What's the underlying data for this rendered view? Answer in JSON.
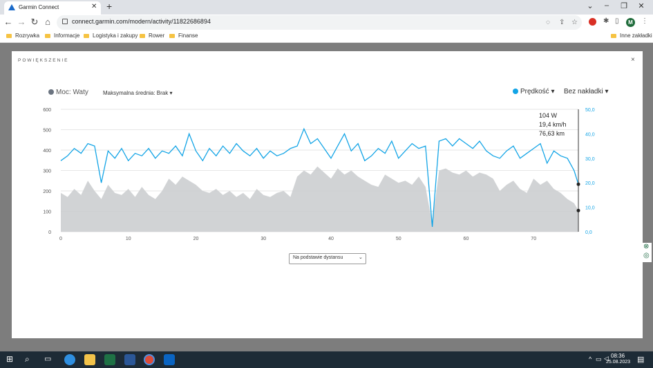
{
  "browser": {
    "tab_title": "Garmin Connect",
    "url": "connect.garmin.com/modern/activity/11822686894",
    "avatar_letter": "M",
    "bookmarks": [
      "Rozrywka",
      "Informacje",
      "Logistyka i zakupy",
      "Rower",
      "Finanse"
    ],
    "other_bookmarks": "Inne zakładki",
    "accent_color": "#1b6ac9"
  },
  "modal": {
    "title": "POWIĘKSZENIE",
    "close_label": "×",
    "legend_power": "Moc: Waty",
    "legend_max_avg": "Maksymalna średnia: Brak ▾",
    "legend_speed": "Prędkość ▾",
    "legend_overlay": "Bez nakładki ▾",
    "select_value": "Na podstawie dystansu",
    "tooltip": {
      "power": "104 W",
      "speed": "19,4 km/h",
      "distance": "76,63 km"
    }
  },
  "taskbar": {
    "time": "08:36",
    "date": "25.08.2023"
  },
  "chart_data": {
    "type": "line",
    "x_ticks": [
      "0",
      "10",
      "20",
      "30",
      "40",
      "50",
      "60",
      "70"
    ],
    "xlim": [
      0,
      76.63
    ],
    "y_left_ticks": [
      "0",
      "100",
      "200",
      "300",
      "400",
      "500",
      "600"
    ],
    "ylim_left": [
      0,
      600
    ],
    "y_right_ticks": [
      "0,0",
      "10,0",
      "20,0",
      "30,0",
      "40,0",
      "50,0"
    ],
    "ylim_right": [
      0,
      50
    ],
    "grid": true,
    "series": [
      {
        "name": "Moc: Waty",
        "axis": "left",
        "style": "area",
        "color": "#c9cbce",
        "x": [
          0,
          1,
          2,
          3,
          4,
          5,
          6,
          7,
          8,
          9,
          10,
          11,
          12,
          13,
          14,
          15,
          16,
          17,
          18,
          19,
          20,
          21,
          22,
          23,
          24,
          25,
          26,
          27,
          28,
          29,
          30,
          31,
          32,
          33,
          34,
          35,
          36,
          37,
          38,
          39,
          40,
          41,
          42,
          43,
          44,
          45,
          46,
          47,
          48,
          49,
          50,
          51,
          52,
          53,
          54,
          55,
          56,
          57,
          58,
          59,
          60,
          61,
          62,
          63,
          64,
          65,
          66,
          67,
          68,
          69,
          70,
          71,
          72,
          73,
          74,
          75,
          76,
          76.63
        ],
        "values": [
          190,
          170,
          210,
          180,
          250,
          200,
          160,
          230,
          190,
          180,
          210,
          170,
          220,
          180,
          160,
          200,
          260,
          230,
          270,
          250,
          230,
          200,
          190,
          210,
          180,
          200,
          170,
          190,
          160,
          210,
          180,
          170,
          190,
          200,
          170,
          270,
          300,
          280,
          320,
          290,
          260,
          310,
          280,
          300,
          270,
          250,
          230,
          220,
          280,
          260,
          240,
          250,
          230,
          270,
          220,
          40,
          300,
          310,
          290,
          280,
          300,
          270,
          290,
          280,
          260,
          200,
          230,
          250,
          210,
          190,
          260,
          230,
          250,
          210,
          190,
          160,
          140,
          104
        ]
      },
      {
        "name": "Prędkość",
        "axis": "right",
        "style": "line",
        "color": "#12a4e6",
        "x": [
          0,
          1,
          2,
          3,
          4,
          5,
          6,
          7,
          8,
          9,
          10,
          11,
          12,
          13,
          14,
          15,
          16,
          17,
          18,
          19,
          20,
          21,
          22,
          23,
          24,
          25,
          26,
          27,
          28,
          29,
          30,
          31,
          32,
          33,
          34,
          35,
          36,
          37,
          38,
          39,
          40,
          41,
          42,
          43,
          44,
          45,
          46,
          47,
          48,
          49,
          50,
          51,
          52,
          53,
          54,
          55,
          56,
          57,
          58,
          59,
          60,
          61,
          62,
          63,
          64,
          65,
          66,
          67,
          68,
          69,
          70,
          71,
          72,
          73,
          74,
          75,
          76,
          76.63
        ],
        "values": [
          29,
          31,
          34,
          32,
          36,
          35,
          20,
          33,
          30,
          34,
          29,
          32,
          31,
          34,
          30,
          33,
          32,
          35,
          31,
          40,
          33,
          29,
          34,
          31,
          35,
          32,
          36,
          33,
          31,
          34,
          30,
          33,
          31,
          32,
          34,
          35,
          42,
          36,
          38,
          34,
          30,
          35,
          40,
          33,
          36,
          29,
          31,
          34,
          32,
          37,
          30,
          33,
          36,
          34,
          35,
          2,
          37,
          38,
          35,
          38,
          36,
          34,
          37,
          33,
          31,
          30,
          33,
          35,
          30,
          32,
          34,
          36,
          28,
          33,
          31,
          30,
          25,
          19.4
        ]
      }
    ]
  }
}
